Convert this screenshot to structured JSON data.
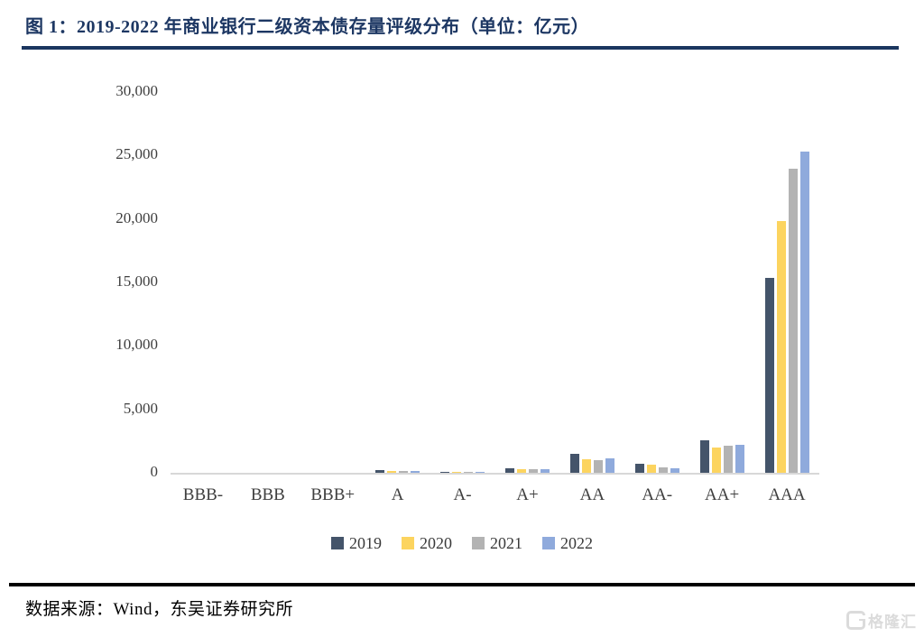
{
  "header": {
    "title": "图 1：2019-2022 年商业银行二级资本债存量评级分布（单位：亿元）"
  },
  "chart_data": {
    "type": "bar",
    "title": "图 1：2019-2022 年商业银行二级资本债存量评级分布（单位：亿元）",
    "unit": "亿元",
    "categories": [
      "BBB-",
      "BBB",
      "BBB+",
      "A",
      "A-",
      "A+",
      "AA",
      "AA-",
      "AA+",
      "AAA"
    ],
    "series": [
      {
        "name": "2019",
        "color": "#44546A",
        "values": [
          0,
          0,
          0,
          180,
          20,
          340,
          1500,
          710,
          2530,
          15330
        ]
      },
      {
        "name": "2020",
        "color": "#FCD45F",
        "values": [
          0,
          0,
          0,
          140,
          20,
          310,
          1090,
          620,
          2000,
          19860
        ]
      },
      {
        "name": "2021",
        "color": "#B3B3B3",
        "values": [
          0,
          0,
          0,
          140,
          20,
          250,
          1030,
          460,
          2100,
          23960
        ]
      },
      {
        "name": "2022",
        "color": "#8FAADC",
        "values": [
          0,
          0,
          0,
          140,
          20,
          270,
          1120,
          360,
          2170,
          25340
        ]
      }
    ],
    "xlabel": "",
    "ylabel": "",
    "ylim": [
      0,
      30000
    ],
    "ytick_step": 5000,
    "yticks": [
      0,
      5000,
      10000,
      15000,
      20000,
      25000,
      30000
    ],
    "ytick_labels": [
      "0",
      "5,000",
      "10,000",
      "15,000",
      "20,000",
      "25,000",
      "30,000"
    ],
    "grid": false,
    "legend_position": "bottom",
    "legend_entries": [
      "2019",
      "2020",
      "2021",
      "2022"
    ]
  },
  "footer": {
    "source": "数据来源：Wind，东吴证券研究所",
    "watermark": "格隆汇"
  },
  "colors": {
    "title_navy": "#1D3763",
    "axis_text": "#3F3F3F",
    "baseline": "#D8D8D8",
    "footer_rule": "#000000",
    "watermark_gray": "#DBDBDB"
  }
}
